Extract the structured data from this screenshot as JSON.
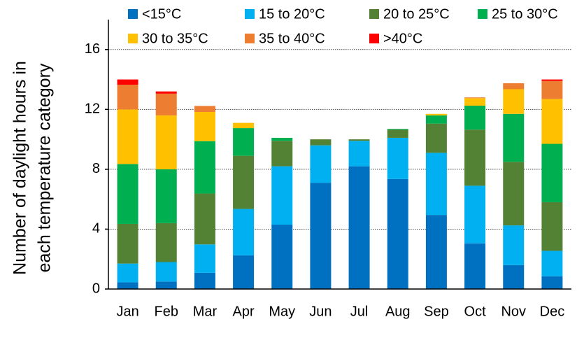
{
  "chart_data": {
    "type": "stacked_bar",
    "y_label": [
      "Number of daylight hours in",
      "each temperature category"
    ],
    "categories": [
      "Jan",
      "Feb",
      "Mar",
      "Apr",
      "May",
      "Jun",
      "Jul",
      "Aug",
      "Sep",
      "Oct",
      "Nov",
      "Dec"
    ],
    "series": [
      {
        "name": "<15°C",
        "color": "#0070c0",
        "values": [
          0.45,
          0.5,
          1.08,
          2.25,
          4.3,
          7.1,
          8.2,
          7.35,
          4.95,
          3.05,
          1.6,
          0.85
        ]
      },
      {
        "name": "15 to 20°C",
        "color": "#00b0f0",
        "values": [
          1.25,
          1.3,
          1.9,
          3.1,
          3.9,
          2.5,
          1.7,
          2.75,
          4.15,
          3.85,
          2.65,
          1.7
        ]
      },
      {
        "name": "20 to 25°C",
        "color": "#548235",
        "values": [
          2.65,
          2.6,
          3.4,
          3.55,
          1.7,
          0.4,
          0.1,
          0.55,
          1.95,
          3.75,
          4.25,
          3.25
        ]
      },
      {
        "name": "25 to 30°C",
        "color": "#00b050",
        "values": [
          4.0,
          3.6,
          3.5,
          1.85,
          0.2,
          0,
          0,
          0.05,
          0.55,
          1.6,
          3.2,
          3.9
        ]
      },
      {
        "name": "30 to 35°C",
        "color": "#ffc000",
        "values": [
          3.65,
          3.6,
          1.95,
          0.35,
          0,
          0,
          0,
          0,
          0.1,
          0.5,
          1.65,
          3.0
        ]
      },
      {
        "name": "35 to 40°C",
        "color": "#ed7d31",
        "values": [
          1.65,
          1.45,
          0.4,
          0,
          0,
          0,
          0,
          0,
          0,
          0.05,
          0.4,
          1.2
        ]
      },
      {
        "name": ">40°C",
        "color": "#ff0000",
        "values": [
          0.35,
          0.15,
          0,
          0,
          0,
          0,
          0,
          0,
          0,
          0,
          0,
          0.1
        ]
      }
    ],
    "ylim": [
      0,
      18
    ],
    "yticks": [
      0,
      4,
      8,
      12,
      16
    ],
    "grid": true
  }
}
